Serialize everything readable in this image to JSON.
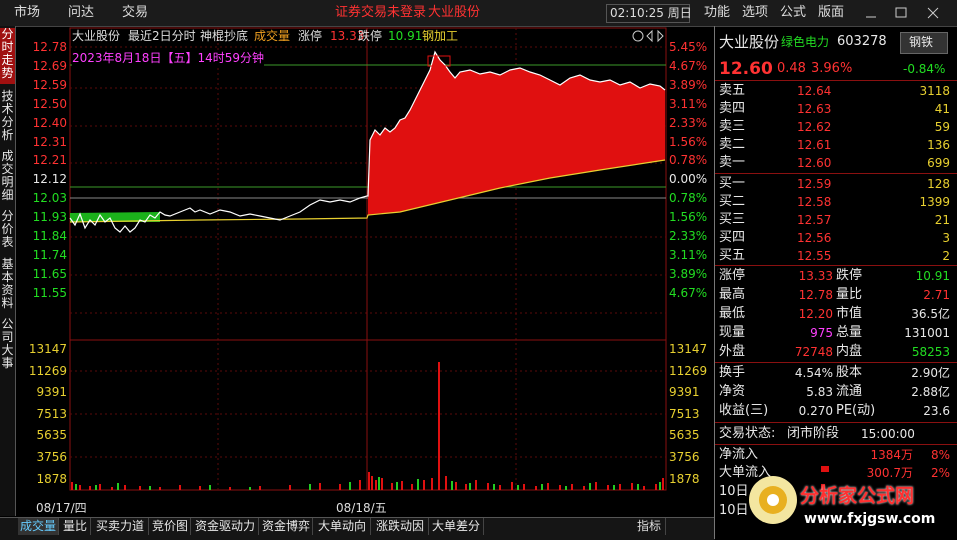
{
  "menu": {
    "left": [
      "市场",
      "问达",
      "交易"
    ],
    "center": [
      "证券交易未登录",
      "大业股份"
    ],
    "time": "02:10:25 周日",
    "right": [
      "功能",
      "选项",
      "公式",
      "版面"
    ]
  },
  "side_tabs": [
    "分时走势",
    "技术分析",
    "成交明细",
    "分价表",
    "基本资料",
    "公司大事"
  ],
  "chart_header": {
    "name": "大业股份",
    "period": "最近2日分时",
    "indicator": "神棍抄底",
    "volume_label": "成交量",
    "limit_up_label": "涨停",
    "limit_up": "13.33",
    "limit_down_label": "跌停",
    "limit_down": "10.91",
    "sector": "钢加工",
    "datetime": "2023年8月18日【五】14时59分钟"
  },
  "price_axis": [
    "12.78",
    "12.69",
    "12.59",
    "12.50",
    "12.40",
    "12.31",
    "12.21",
    "12.12",
    "12.03",
    "11.93",
    "11.84",
    "11.74",
    "11.65",
    "11.55"
  ],
  "percent_axis": [
    "5.45%",
    "4.67%",
    "3.89%",
    "3.11%",
    "2.33%",
    "1.56%",
    "0.78%",
    "0.00%",
    "0.78%",
    "1.56%",
    "2.33%",
    "3.11%",
    "3.89%",
    "4.67%"
  ],
  "volume_axis": [
    "13147",
    "11269",
    "9391",
    "7513",
    "5635",
    "3756",
    "1878"
  ],
  "dates": [
    "08/17/四",
    "08/18/五"
  ],
  "bottom_tabs": [
    "成交量",
    "量比",
    "买卖力道",
    "竞价图",
    "资金驱动力",
    "资金博弈",
    "大单动向",
    "涨跌动因",
    "大单差分"
  ],
  "indicator_tab": "指标",
  "quote": {
    "name": "大业股份",
    "concept": "绿色电力",
    "code": "603278",
    "industry": "钢铁",
    "price": "12.60",
    "change": "0.48",
    "change_pct": "3.96%",
    "industry_pct": "-0.84%"
  },
  "order_book": [
    {
      "label": "卖五",
      "price": "12.64",
      "volume": "3118"
    },
    {
      "label": "卖四",
      "price": "12.63",
      "volume": "41"
    },
    {
      "label": "卖三",
      "price": "12.62",
      "volume": "59"
    },
    {
      "label": "卖二",
      "price": "12.61",
      "volume": "136"
    },
    {
      "label": "卖一",
      "price": "12.60",
      "volume": "699"
    },
    {
      "label": "买一",
      "price": "12.59",
      "volume": "128"
    },
    {
      "label": "买二",
      "price": "12.58",
      "volume": "1399"
    },
    {
      "label": "买三",
      "price": "12.57",
      "volume": "21"
    },
    {
      "label": "买四",
      "price": "12.56",
      "volume": "3"
    },
    {
      "label": "买五",
      "price": "12.55",
      "volume": "2"
    }
  ],
  "stats": [
    [
      "涨停",
      "13.33",
      "跌停",
      "10.91"
    ],
    [
      "最高",
      "12.78",
      "量比",
      "2.71"
    ],
    [
      "最低",
      "12.20",
      "市值",
      "36.5亿"
    ],
    [
      "现量",
      "975",
      "总量",
      "131001"
    ],
    [
      "外盘",
      "72748",
      "内盘",
      "58253"
    ],
    [
      "换手",
      "4.54%",
      "股本",
      "2.90亿"
    ],
    [
      "净资",
      "5.83",
      "流通",
      "2.88亿"
    ],
    [
      "收益(三)",
      "0.270",
      "PE(动)",
      "23.6"
    ]
  ],
  "status": {
    "label": "交易状态:",
    "phase": "闭市阶段",
    "time": "15:00:00"
  },
  "flows": [
    {
      "label": "净流入",
      "amount": "1384万",
      "pct": "8%"
    },
    {
      "label": "大单流入",
      "amount": "300.7万",
      "pct": "2%"
    },
    {
      "label": "10日"
    },
    {
      "label": "10日"
    }
  ],
  "watermark": {
    "name": "分析家公式网",
    "url": "www.fxjgsw.com"
  }
}
